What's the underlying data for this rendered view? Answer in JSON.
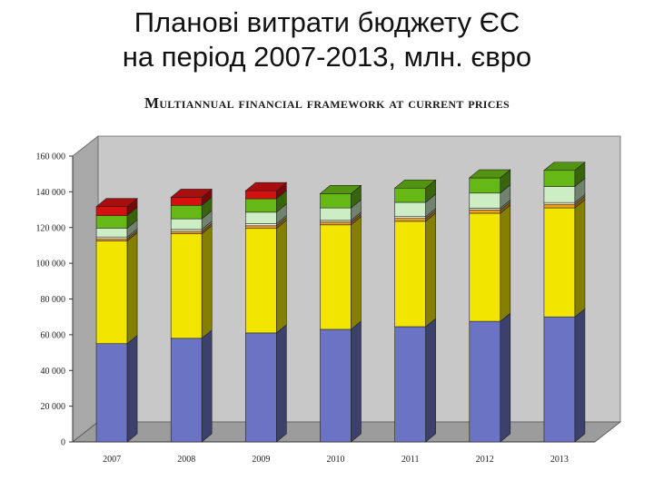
{
  "slide": {
    "title_line1": "Планові витрати бюджету ЄС",
    "title_line2": "на період 2007-2013, млн. євро"
  },
  "chart_data": {
    "type": "bar",
    "stacked": true,
    "three_d": true,
    "title": "Multiannual financial framework at current prices",
    "xlabel": "",
    "ylabel": "",
    "categories": [
      "2007",
      "2008",
      "2009",
      "2010",
      "2011",
      "2012",
      "2013"
    ],
    "y_tick_labels": [
      "0",
      "20 000",
      "40 000",
      "60 000",
      "80 000",
      "100 000",
      "120 000",
      "140 000",
      "160 000"
    ],
    "ylim": [
      0,
      160000
    ],
    "grid": false,
    "legend": "none",
    "series": [
      {
        "values": [
          55000,
          58000,
          61000,
          63000,
          64500,
          67500,
          70000
        ],
        "color": "#6b74c4"
      },
      {
        "values": [
          57500,
          58500,
          58500,
          58500,
          59000,
          60500,
          61000
        ],
        "color": "#f2e600"
      },
      {
        "values": [
          1200,
          1300,
          1500,
          1500,
          1600,
          1800,
          2000
        ],
        "color": "#f0a018"
      },
      {
        "values": [
          1000,
          1100,
          1100,
          1000,
          1000,
          1000,
          1000
        ],
        "color": "#f4f4d8"
      },
      {
        "values": [
          5000,
          6000,
          6500,
          7000,
          8000,
          8500,
          9000
        ],
        "color": "#cdeec4"
      },
      {
        "values": [
          7000,
          7500,
          7500,
          8000,
          8000,
          8500,
          9000
        ],
        "color": "#66b814"
      },
      {
        "values": [
          5000,
          4500,
          4500,
          0,
          0,
          0,
          0
        ],
        "color": "#d41010"
      }
    ],
    "colors": {
      "wall": "#c8c8c8",
      "side_wall": "#a8a8a8",
      "floor": "#9c9c9c"
    }
  }
}
